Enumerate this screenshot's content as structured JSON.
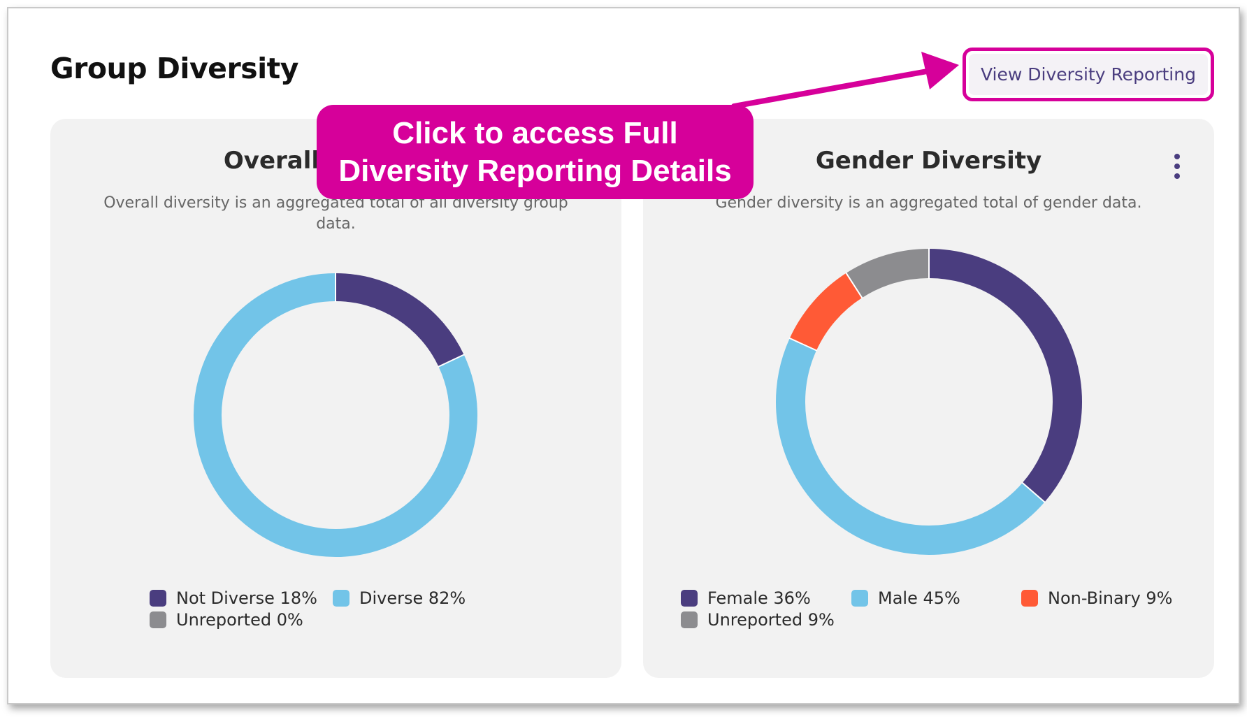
{
  "page": {
    "title": "Group Diversity",
    "view_button_label": "View Diversity Reporting"
  },
  "callout": {
    "line1": "Click to access Full",
    "line2": "Diversity Reporting Details"
  },
  "cards": {
    "overall": {
      "title": "Overall Diversity",
      "subtitle": "Overall diversity is an aggregated total of all diversity group data."
    },
    "gender": {
      "title": "Gender Diversity",
      "subtitle": "Gender diversity is an aggregated total of gender data."
    }
  },
  "chart_data": [
    {
      "type": "pie",
      "title": "Overall Diversity",
      "series": [
        {
          "name": "Not Diverse",
          "label": "Not Diverse 18%",
          "value": 18,
          "color": "#4a3d7f"
        },
        {
          "name": "Diverse",
          "label": "Diverse 82%",
          "value": 82,
          "color": "#72c4e8"
        },
        {
          "name": "Unreported",
          "label": "Unreported 0%",
          "value": 0,
          "color": "#8c8c8f"
        }
      ]
    },
    {
      "type": "pie",
      "title": "Gender Diversity",
      "series": [
        {
          "name": "Female",
          "label": "Female 36%",
          "value": 36,
          "color": "#4a3d7f"
        },
        {
          "name": "Male",
          "label": "Male 45%",
          "value": 45,
          "color": "#72c4e8"
        },
        {
          "name": "Non-Binary",
          "label": "Non-Binary 9%",
          "value": 9,
          "color": "#ff5a36"
        },
        {
          "name": "Unreported",
          "label": "Unreported 9%",
          "value": 9,
          "color": "#8c8c8f"
        }
      ]
    }
  ],
  "colors": {
    "accent": "#d6009a",
    "brand": "#4a3d7f"
  },
  "icons": {
    "card_menu": "kebab-menu-icon"
  }
}
